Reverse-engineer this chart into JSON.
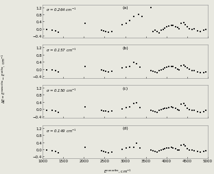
{
  "sigma_labels": [
    "0.264",
    "0.157",
    "0.150",
    "0.149"
  ],
  "panel_labels": [
    "(a)",
    "(b)",
    "(c)",
    "(d)"
  ],
  "xlim": [
    1000,
    5000
  ],
  "ylim": [
    -0.5,
    1.35
  ],
  "yticks": [
    -0.4,
    0.0,
    0.4,
    0.8,
    1.2
  ],
  "xticks": [
    1000,
    1500,
    2000,
    2500,
    3000,
    3500,
    4000,
    4500,
    5000
  ],
  "xlabel": "$E^{\\mathrm{nonortho}}$, cm$^{-1}$",
  "ylabel": "$\\Delta E = E^{\\mathrm{nonortho}} - E^{\\mathrm{ortho}}$, cm$^{-1}$",
  "data": {
    "a": {
      "x": [
        1100,
        1230,
        1310,
        1380,
        2020,
        2420,
        2480,
        2530,
        2600,
        2680,
        2920,
        3020,
        3100,
        3200,
        3320,
        3400,
        3620,
        3680,
        3730,
        3780,
        3830,
        3870,
        3920,
        3960,
        4010,
        4060,
        4120,
        4160,
        4220,
        4270,
        4310,
        4360,
        4420,
        4460,
        4510,
        4560,
        4620,
        4680,
        4750,
        4820,
        4900,
        4960
      ],
      "y": [
        -0.05,
        -0.08,
        -0.12,
        -0.2,
        0.3,
        -0.08,
        -0.12,
        -0.16,
        -0.2,
        -0.16,
        0.22,
        0.3,
        0.45,
        0.7,
        0.78,
        0.68,
        1.18,
        -0.15,
        -0.1,
        -0.18,
        -0.22,
        -0.1,
        -0.05,
        0.02,
        0.1,
        0.15,
        0.18,
        0.2,
        0.12,
        0.05,
        -0.02,
        0.3,
        0.32,
        0.22,
        0.1,
        0.0,
        -0.05,
        0.0,
        -0.12,
        -0.15,
        -0.1,
        -0.05
      ]
    },
    "b": {
      "x": [
        1100,
        1230,
        1310,
        1380,
        2020,
        2420,
        2480,
        2530,
        2600,
        2680,
        2920,
        3020,
        3100,
        3200,
        3280,
        3350,
        3620,
        3680,
        3730,
        3780,
        3830,
        3870,
        3920,
        3960,
        4010,
        4060,
        4120,
        4160,
        4220,
        4270,
        4310,
        4360,
        4420,
        4460,
        4510,
        4560,
        4620,
        4680,
        4750,
        4820,
        4900,
        4960
      ],
      "y": [
        -0.05,
        -0.07,
        -0.1,
        -0.18,
        0.15,
        -0.06,
        -0.1,
        -0.14,
        -0.18,
        -0.14,
        0.05,
        0.1,
        0.15,
        0.35,
        0.28,
        0.1,
        -0.08,
        -0.12,
        -0.16,
        -0.2,
        -0.1,
        -0.05,
        0.0,
        0.05,
        0.08,
        0.12,
        0.15,
        0.12,
        0.05,
        0.0,
        -0.05,
        0.18,
        0.2,
        0.15,
        0.05,
        -0.02,
        -0.08,
        -0.1,
        -0.18,
        -0.22,
        -0.2,
        -0.18
      ]
    },
    "c": {
      "x": [
        1100,
        1230,
        1310,
        1380,
        2020,
        2420,
        2480,
        2530,
        2600,
        2680,
        2920,
        3020,
        3100,
        3200,
        3280,
        3350,
        3620,
        3680,
        3730,
        3780,
        3830,
        3870,
        3920,
        3960,
        4010,
        4060,
        4120,
        4160,
        4220,
        4270,
        4310,
        4360,
        4420,
        4460,
        4510,
        4560,
        4620,
        4680,
        4750,
        4820,
        4900,
        4960
      ],
      "y": [
        -0.05,
        -0.07,
        -0.1,
        -0.18,
        0.12,
        -0.06,
        -0.1,
        -0.12,
        -0.16,
        -0.12,
        0.02,
        0.08,
        0.12,
        0.3,
        0.36,
        0.08,
        -0.05,
        -0.1,
        -0.14,
        -0.18,
        -0.08,
        -0.03,
        0.0,
        0.05,
        0.06,
        0.1,
        0.12,
        0.1,
        0.04,
        -0.02,
        -0.06,
        0.28,
        0.32,
        0.22,
        0.05,
        -0.02,
        -0.05,
        -0.08,
        -0.15,
        -0.18,
        -0.15,
        -0.05
      ]
    },
    "d": {
      "x": [
        1100,
        1230,
        1310,
        1380,
        2020,
        2420,
        2480,
        2530,
        2600,
        2680,
        2920,
        3020,
        3100,
        3200,
        3280,
        3350,
        3620,
        3680,
        3730,
        3780,
        3830,
        3870,
        3920,
        3960,
        4010,
        4060,
        4120,
        4160,
        4220,
        4270,
        4310,
        4360,
        4420,
        4460,
        4510,
        4560,
        4620,
        4680,
        4750,
        4820,
        4900,
        4960
      ],
      "y": [
        -0.05,
        -0.07,
        -0.1,
        -0.18,
        0.12,
        -0.06,
        -0.12,
        -0.15,
        -0.18,
        -0.14,
        0.0,
        0.08,
        0.1,
        0.1,
        0.35,
        0.06,
        -0.04,
        -0.08,
        -0.12,
        -0.16,
        -0.08,
        -0.03,
        0.0,
        0.04,
        0.06,
        0.08,
        0.1,
        0.08,
        0.03,
        -0.02,
        -0.05,
        0.25,
        0.28,
        0.2,
        0.04,
        -0.02,
        -0.05,
        -0.08,
        -0.12,
        -0.15,
        -0.12,
        -0.06
      ]
    }
  },
  "marker_size": 4,
  "marker_color": "#222222",
  "bg_color": "#e8e8e0"
}
